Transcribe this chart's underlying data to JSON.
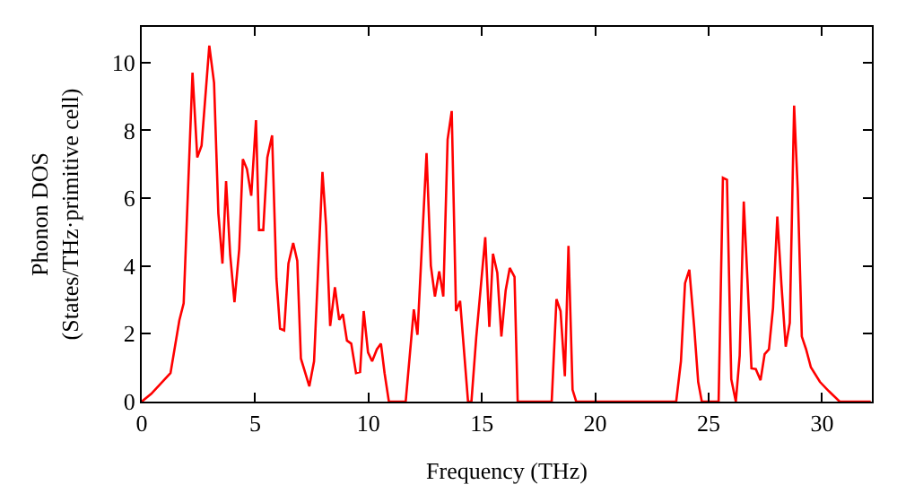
{
  "chart_data": {
    "type": "line",
    "xlabel": "Frequency (THz)",
    "ylabel": "Phonon DOS\n(States/THz·primitive cell)",
    "xlim": [
      0,
      32.2
    ],
    "ylim": [
      0,
      11.05
    ],
    "xticks": [
      0,
      5,
      10,
      15,
      20,
      25,
      30
    ],
    "yticks": [
      0,
      2,
      4,
      6,
      8,
      10
    ],
    "grid": false,
    "marker": "none",
    "line_style": "solid",
    "series": [
      {
        "color": "#ff0000",
        "x": [
          0,
          0.42,
          1.27,
          1.66,
          1.85,
          2.24,
          2.45,
          2.64,
          2.98,
          3.19,
          3.38,
          3.56,
          3.72,
          3.9,
          4.09,
          4.3,
          4.46,
          4.64,
          4.83,
          5.04,
          5.17,
          5.36,
          5.54,
          5.75,
          5.94,
          6.1,
          6.28,
          6.47,
          6.68,
          6.86,
          7.02,
          7.39,
          7.6,
          7.97,
          8.13,
          8.31,
          8.52,
          8.71,
          8.87,
          9.05,
          9.24,
          9.45,
          9.63,
          9.79,
          9.98,
          10.16,
          10.37,
          10.55,
          10.71,
          10.9,
          11.64,
          12.0,
          12.16,
          12.56,
          12.75,
          12.93,
          13.12,
          13.3,
          13.49,
          13.67,
          13.86,
          14.04,
          14.39,
          14.54,
          14.75,
          15.15,
          15.33,
          15.49,
          15.68,
          15.86,
          16.05,
          16.23,
          16.44,
          16.58,
          18.08,
          18.29,
          18.47,
          18.66,
          18.82,
          19.0,
          19.16,
          23.57,
          23.78,
          23.96,
          24.15,
          24.36,
          24.54,
          24.7,
          25.44,
          25.63,
          25.81,
          26.0,
          26.2,
          26.37,
          26.55,
          26.71,
          26.89,
          27.08,
          27.29,
          27.47,
          27.66,
          27.84,
          28.03,
          28.21,
          28.4,
          28.58,
          28.77,
          28.93,
          29.11,
          29.3,
          29.51,
          29.91,
          30.3,
          30.78,
          32.15
        ],
        "values": [
          0,
          0.23,
          0.84,
          2.4,
          2.9,
          9.7,
          7.2,
          7.55,
          10.5,
          9.4,
          5.55,
          4.07,
          6.5,
          4.33,
          2.93,
          4.5,
          7.15,
          6.86,
          6.07,
          8.3,
          5.06,
          5.06,
          7.2,
          7.85,
          3.63,
          2.15,
          2.1,
          4.07,
          4.68,
          4.15,
          1.27,
          0.45,
          1.19,
          6.77,
          5.2,
          2.23,
          3.37,
          2.41,
          2.58,
          1.8,
          1.71,
          0.84,
          0.87,
          2.67,
          1.45,
          1.19,
          1.54,
          1.71,
          0.84,
          0,
          0,
          2.72,
          1.97,
          7.33,
          4.01,
          3.1,
          3.84,
          3.1,
          7.73,
          8.57,
          2.67,
          2.97,
          0,
          0,
          1.88,
          4.85,
          2.2,
          4.36,
          3.8,
          1.92,
          3.28,
          3.94,
          3.68,
          0,
          0,
          3.02,
          2.67,
          0.75,
          4.59,
          0.35,
          0,
          0,
          1.19,
          3.49,
          3.89,
          2.23,
          0.58,
          0,
          0,
          6.6,
          6.54,
          0.66,
          0,
          1.36,
          5.9,
          3.63,
          0.98,
          0.96,
          0.63,
          1.4,
          1.54,
          2.76,
          5.46,
          3.46,
          1.62,
          2.32,
          8.73,
          6.25,
          1.92,
          1.54,
          1.01,
          0.58,
          0.31,
          0,
          0
        ]
      }
    ]
  }
}
